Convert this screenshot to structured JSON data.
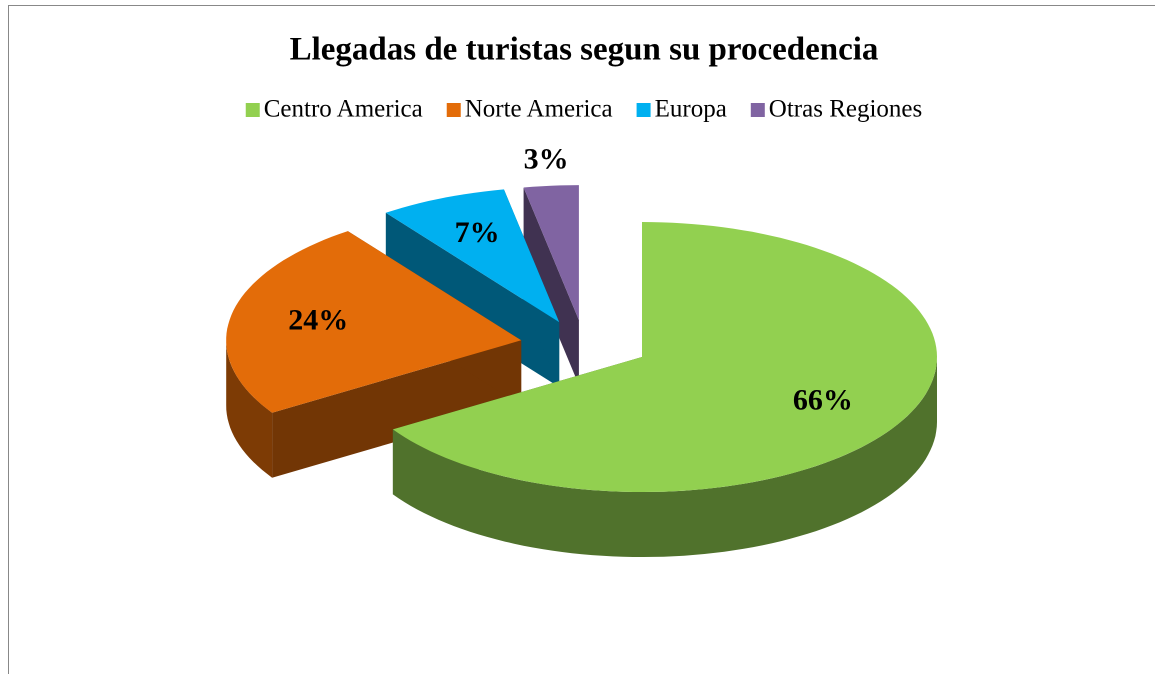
{
  "chart_data": {
    "type": "pie3d",
    "title": "Llegadas de turistas segun su procedencia",
    "categories": [
      "Centro America",
      "Norte America",
      "Europa",
      "Otras Regiones"
    ],
    "values": [
      66,
      24,
      7,
      3
    ],
    "value_labels": [
      "66%",
      "24%",
      "7%",
      "3%"
    ],
    "colors": [
      "#92d050",
      "#e36c09",
      "#00b0f0",
      "#8064a2"
    ],
    "legend": "top"
  }
}
